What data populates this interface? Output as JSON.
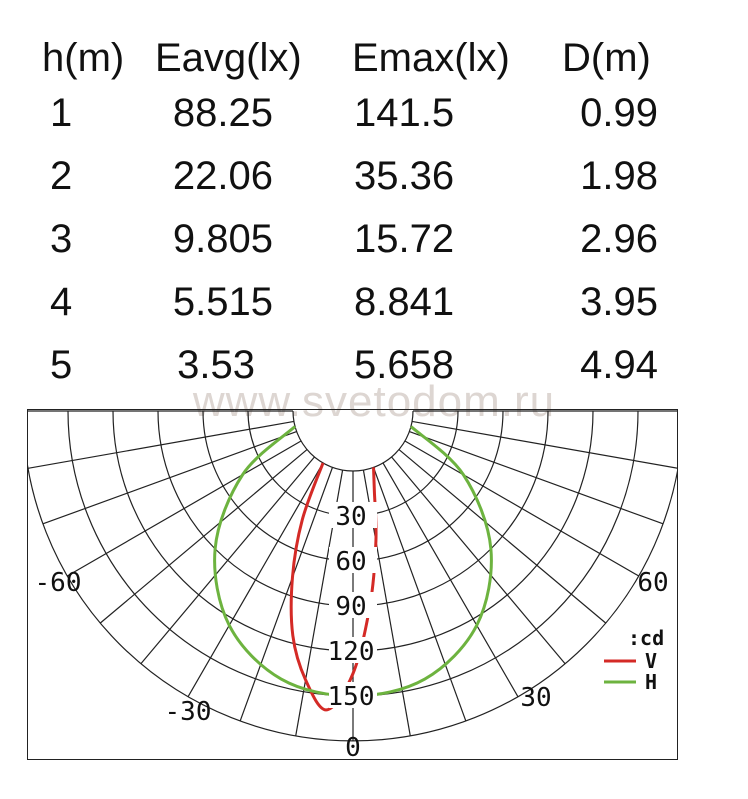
{
  "table": {
    "headers": [
      "h(m)",
      "Eavg(lx)",
      "Emax(lx)",
      "D(m)"
    ],
    "rows": [
      [
        "1",
        "88.25",
        "141.5",
        "0.99"
      ],
      [
        "2",
        "22.06",
        "35.36",
        "1.98"
      ],
      [
        "3",
        "9.805",
        "15.72",
        "2.96"
      ],
      [
        "4",
        "5.515",
        "8.841",
        "3.95"
      ],
      [
        "5",
        "3.53",
        "5.658",
        "4.94"
      ]
    ]
  },
  "watermark": "www.svetodom.ru",
  "chart_data": {
    "type": "polar",
    "radial_ticks": [
      30,
      60,
      90,
      120,
      150
    ],
    "radial_max": 180,
    "angle_labels": [
      "0",
      "-30",
      "30",
      "-60",
      "60"
    ],
    "legend_title": ":cd",
    "grid": true,
    "series": [
      {
        "name": "V",
        "color": "#d42a26",
        "points": [
          {
            "angle": -30,
            "value": 0
          },
          {
            "angle": -25,
            "value": 40
          },
          {
            "angle": -20,
            "value": 78
          },
          {
            "angle": -15,
            "value": 115
          },
          {
            "angle": -10,
            "value": 142
          },
          {
            "angle": -5,
            "value": 160
          },
          {
            "angle": 0,
            "value": 135
          },
          {
            "angle": 5,
            "value": 90
          },
          {
            "angle": 10,
            "value": 48
          },
          {
            "angle": 15,
            "value": 15
          },
          {
            "angle": 20,
            "value": 0
          }
        ]
      },
      {
        "name": "H",
        "color": "#6db33f",
        "points": [
          {
            "angle": -75,
            "value": 0
          },
          {
            "angle": -60,
            "value": 45
          },
          {
            "angle": -45,
            "value": 90
          },
          {
            "angle": -30,
            "value": 125
          },
          {
            "angle": -15,
            "value": 145
          },
          {
            "angle": 0,
            "value": 150
          },
          {
            "angle": 15,
            "value": 145
          },
          {
            "angle": 30,
            "value": 125
          },
          {
            "angle": 45,
            "value": 90
          },
          {
            "angle": 60,
            "value": 45
          },
          {
            "angle": 75,
            "value": 0
          }
        ]
      }
    ]
  }
}
